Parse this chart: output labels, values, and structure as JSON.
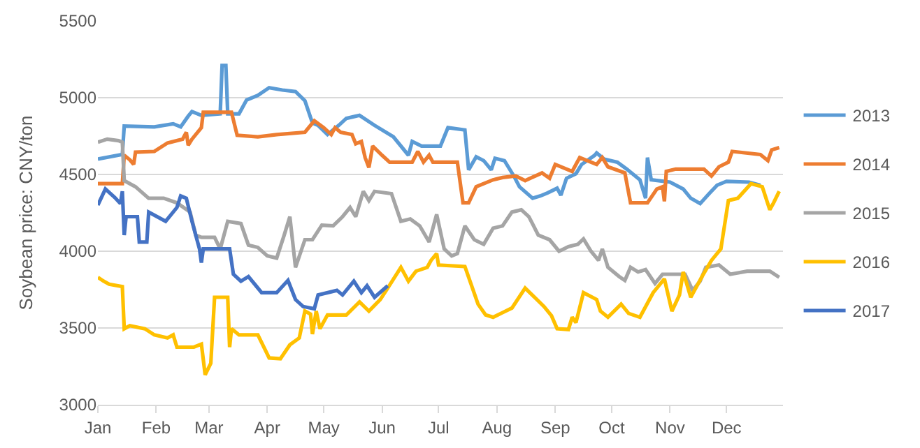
{
  "chart_data": {
    "type": "line",
    "ylabel": "Soybean price: CNY/ton",
    "xlim": [
      "--01-01",
      "--12-31"
    ],
    "xticks": [
      {
        "value": "--01-01",
        "label": "Jan"
      },
      {
        "value": "--02-01",
        "label": "Feb"
      },
      {
        "value": "--03-01",
        "label": "Mar"
      },
      {
        "value": "--04-01",
        "label": "Apr"
      },
      {
        "value": "--05-01",
        "label": "May"
      },
      {
        "value": "--06-01",
        "label": "Jun"
      },
      {
        "value": "--07-01",
        "label": "Jul"
      },
      {
        "value": "--08-01",
        "label": "Aug"
      },
      {
        "value": "--09-01",
        "label": "Sep"
      },
      {
        "value": "--10-01",
        "label": "Oct"
      },
      {
        "value": "--11-01",
        "label": "Nov"
      },
      {
        "value": "--12-01",
        "label": "Dec"
      }
    ],
    "ylim": [
      3000,
      5500
    ],
    "yticks": [
      3000,
      3500,
      4000,
      4500,
      5000,
      5500
    ],
    "grid": "y",
    "legend": "right",
    "marker": "none",
    "line_style": "solid",
    "series": [
      {
        "name": "2013",
        "color": "#5b9bd5",
        "x": [
          "--01-01",
          "--01-14",
          "--01-15",
          "--01-31",
          "--02-10",
          "--02-14",
          "--02-18",
          "--02-20",
          "--02-25",
          "--03-07",
          "--03-08",
          "--03-10",
          "--03-11",
          "--03-17",
          "--03-21",
          "--03-27",
          "--04-02",
          "--04-09",
          "--04-16",
          "--04-21",
          "--04-25",
          "--04-28",
          "--05-03",
          "--05-09",
          "--05-13",
          "--05-20",
          "--05-28",
          "--06-07",
          "--06-15",
          "--06-17",
          "--06-22",
          "--07-02",
          "--07-06",
          "--07-15",
          "--07-17",
          "--07-21",
          "--07-25",
          "--07-29",
          "--07-31",
          "--08-05",
          "--08-10",
          "--08-13",
          "--08-20",
          "--08-24",
          "--08-28",
          "--09-02",
          "--09-04",
          "--09-07",
          "--09-12",
          "--09-15",
          "--09-22",
          "--09-23",
          "--09-27",
          "--10-04",
          "--10-09",
          "--10-16",
          "--10-19",
          "--10-20",
          "--10-22",
          "--11-01",
          "--11-08",
          "--11-12",
          "--11-17",
          "--11-21",
          "--11-26",
          "--12-01",
          "--12-13",
          "--12-19"
        ],
        "values": [
          4600,
          4630,
          4815,
          4810,
          4830,
          4810,
          4880,
          4910,
          4885,
          4895,
          5210,
          5210,
          4895,
          4895,
          4985,
          5015,
          5065,
          5050,
          5040,
          4980,
          4835,
          4820,
          4760,
          4820,
          4865,
          4885,
          4820,
          4745,
          4625,
          4715,
          4685,
          4685,
          4805,
          4790,
          4530,
          4615,
          4590,
          4530,
          4605,
          4590,
          4490,
          4420,
          4345,
          4360,
          4380,
          4410,
          4365,
          4475,
          4505,
          4565,
          4625,
          4640,
          4600,
          4580,
          4535,
          4465,
          4345,
          4610,
          4465,
          4450,
          4405,
          4345,
          4310,
          4365,
          4430,
          4455,
          4450,
          4430
        ]
      },
      {
        "name": "2014",
        "color": "#ed7d31",
        "x": [
          "--01-01",
          "--01-14",
          "--01-15",
          "--01-18",
          "--01-20",
          "--01-21",
          "--01-31",
          "--02-07",
          "--02-15",
          "--02-17",
          "--02-18",
          "--02-20",
          "--02-25",
          "--02-26",
          "--03-13",
          "--03-16",
          "--03-27",
          "--04-06",
          "--04-21",
          "--04-26",
          "--05-01",
          "--05-05",
          "--05-07",
          "--05-10",
          "--05-16",
          "--05-18",
          "--05-21",
          "--05-23",
          "--05-25",
          "--05-27",
          "--06-01",
          "--06-05",
          "--06-17",
          "--06-20",
          "--06-23",
          "--06-26",
          "--06-28",
          "--07-11",
          "--07-14",
          "--07-17",
          "--07-21",
          "--07-30",
          "--08-04",
          "--08-11",
          "--08-16",
          "--08-25",
          "--08-29",
          "--09-01",
          "--09-10",
          "--09-14",
          "--09-23",
          "--09-26",
          "--09-29",
          "--10-08",
          "--10-11",
          "--10-20",
          "--10-25",
          "--10-28",
          "--10-29",
          "--10-30",
          "--11-04",
          "--11-19",
          "--11-23",
          "--11-27",
          "--12-02",
          "--12-04",
          "--12-19",
          "--12-23",
          "--12-25",
          "--12-29"
        ],
        "values": [
          4440,
          4440,
          4625,
          4595,
          4565,
          4645,
          4650,
          4705,
          4730,
          4775,
          4690,
          4730,
          4805,
          4905,
          4905,
          4755,
          4745,
          4760,
          4775,
          4850,
          4805,
          4760,
          4805,
          4775,
          4760,
          4700,
          4715,
          4610,
          4545,
          4685,
          4625,
          4580,
          4580,
          4650,
          4580,
          4625,
          4580,
          4580,
          4315,
          4315,
          4420,
          4465,
          4480,
          4490,
          4460,
          4510,
          4475,
          4565,
          4520,
          4610,
          4565,
          4610,
          4550,
          4510,
          4315,
          4315,
          4405,
          4420,
          4325,
          4520,
          4535,
          4535,
          4490,
          4550,
          4580,
          4650,
          4630,
          4590,
          4660,
          4675
        ]
      },
      {
        "name": "2015",
        "color": "#a5a5a5",
        "x": [
          "--01-01",
          "--01-06",
          "--01-12",
          "--01-14",
          "--01-15",
          "--01-21",
          "--01-28",
          "--02-05",
          "--02-12",
          "--02-19",
          "--02-22",
          "--02-25",
          "--03-04",
          "--03-07",
          "--03-11",
          "--03-18",
          "--03-22",
          "--03-27",
          "--04-01",
          "--04-06",
          "--04-10",
          "--04-13",
          "--04-16",
          "--04-21",
          "--04-25",
          "--04-30",
          "--05-06",
          "--05-11",
          "--05-15",
          "--05-18",
          "--05-22",
          "--05-25",
          "--05-28",
          "--06-06",
          "--06-11",
          "--06-16",
          "--06-21",
          "--06-26",
          "--06-30",
          "--07-04",
          "--07-08",
          "--07-11",
          "--07-15",
          "--07-20",
          "--07-25",
          "--07-30",
          "--08-04",
          "--08-09",
          "--08-14",
          "--08-18",
          "--08-23",
          "--08-29",
          "--09-03",
          "--09-08",
          "--09-13",
          "--09-16",
          "--09-20",
          "--09-24",
          "--09-26",
          "--09-29",
          "--10-05",
          "--10-08",
          "--10-11",
          "--10-15",
          "--10-19",
          "--10-24",
          "--10-28",
          "--11-09",
          "--11-13",
          "--11-17",
          "--11-20",
          "--11-27",
          "--12-03",
          "--12-12",
          "--12-24",
          "--12-29"
        ],
        "values": [
          4710,
          4730,
          4720,
          4710,
          4460,
          4420,
          4345,
          4345,
          4315,
          4255,
          4105,
          4090,
          4090,
          4015,
          4195,
          4180,
          4040,
          4025,
          3970,
          3955,
          4105,
          4225,
          3895,
          4075,
          4075,
          4170,
          4165,
          4225,
          4285,
          4225,
          4390,
          4330,
          4390,
          4375,
          4195,
          4210,
          4165,
          4060,
          4240,
          4015,
          3970,
          3985,
          4165,
          4075,
          4045,
          4150,
          4165,
          4255,
          4270,
          4225,
          4105,
          4075,
          4000,
          4030,
          4045,
          4080,
          4000,
          3940,
          4015,
          3895,
          3835,
          3810,
          3895,
          3865,
          3880,
          3790,
          3850,
          3850,
          3745,
          3805,
          3895,
          3910,
          3850,
          3870,
          3870,
          3830
        ]
      },
      {
        "name": "2016",
        "color": "#ffc000",
        "x": [
          "--01-01",
          "--01-04",
          "--01-07",
          "--01-14",
          "--01-15",
          "--01-18",
          "--01-26",
          "--01-31",
          "--02-07",
          "--02-10",
          "--02-12",
          "--02-21",
          "--02-25",
          "--02-27",
          "--03-02",
          "--03-04",
          "--03-11",
          "--03-12",
          "--03-13",
          "--03-17",
          "--03-27",
          "--04-02",
          "--04-08",
          "--04-13",
          "--04-18",
          "--04-21",
          "--04-24",
          "--04-25",
          "--04-27",
          "--04-29",
          "--05-03",
          "--05-13",
          "--05-20",
          "--05-25",
          "--05-31",
          "--06-04",
          "--06-11",
          "--06-15",
          "--06-19",
          "--06-25",
          "--06-27",
          "--06-30",
          "--07-01",
          "--07-15",
          "--07-22",
          "--07-26",
          "--07-30",
          "--08-04",
          "--08-09",
          "--08-16",
          "--08-26",
          "--08-30",
          "--09-02",
          "--09-08",
          "--09-10",
          "--09-12",
          "--09-16",
          "--09-23",
          "--09-25",
          "--09-29",
          "--10-06",
          "--10-10",
          "--10-16",
          "--10-23",
          "--10-29",
          "--11-02",
          "--11-06",
          "--11-08",
          "--11-12",
          "--11-18",
          "--11-23",
          "--11-28",
          "--12-02",
          "--12-07",
          "--12-14",
          "--12-20",
          "--12-24",
          "--12-26",
          "--12-29"
        ],
        "values": [
          3830,
          3805,
          3785,
          3770,
          3495,
          3515,
          3495,
          3455,
          3435,
          3455,
          3375,
          3375,
          3395,
          3195,
          3270,
          3700,
          3700,
          3375,
          3495,
          3455,
          3455,
          3305,
          3300,
          3390,
          3435,
          3610,
          3590,
          3460,
          3610,
          3495,
          3585,
          3585,
          3670,
          3610,
          3685,
          3760,
          3895,
          3805,
          3870,
          3895,
          3940,
          3985,
          3910,
          3900,
          3655,
          3585,
          3570,
          3600,
          3630,
          3760,
          3640,
          3580,
          3495,
          3490,
          3570,
          3535,
          3730,
          3685,
          3610,
          3570,
          3655,
          3595,
          3570,
          3730,
          3820,
          3610,
          3715,
          3865,
          3700,
          3835,
          3940,
          4015,
          4330,
          4345,
          4440,
          4420,
          4270,
          4315,
          4390
        ]
      },
      {
        "name": "2017",
        "color": "#4472c4",
        "x": [
          "--01-01",
          "--01-05",
          "--01-10",
          "--01-13",
          "--01-14",
          "--01-15",
          "--01-16",
          "--01-22",
          "--01-23",
          "--01-27",
          "--01-28",
          "--02-06",
          "--02-12",
          "--02-14",
          "--02-17",
          "--02-20",
          "--02-24",
          "--02-25",
          "--02-26",
          "--03-12",
          "--03-14",
          "--03-18",
          "--03-22",
          "--03-26",
          "--03-29",
          "--04-06",
          "--04-12",
          "--04-16",
          "--04-20",
          "--04-26",
          "--04-28",
          "--05-08",
          "--05-11",
          "--05-17",
          "--05-21",
          "--05-24",
          "--05-28",
          "--06-04"
        ],
        "values": [
          4300,
          4405,
          4350,
          4310,
          4390,
          4105,
          4225,
          4225,
          4060,
          4060,
          4255,
          4195,
          4285,
          4360,
          4345,
          4195,
          4015,
          3925,
          4015,
          4015,
          3850,
          3805,
          3835,
          3775,
          3730,
          3730,
          3810,
          3685,
          3640,
          3625,
          3715,
          3745,
          3715,
          3805,
          3730,
          3775,
          3700,
          3775
        ]
      }
    ]
  }
}
